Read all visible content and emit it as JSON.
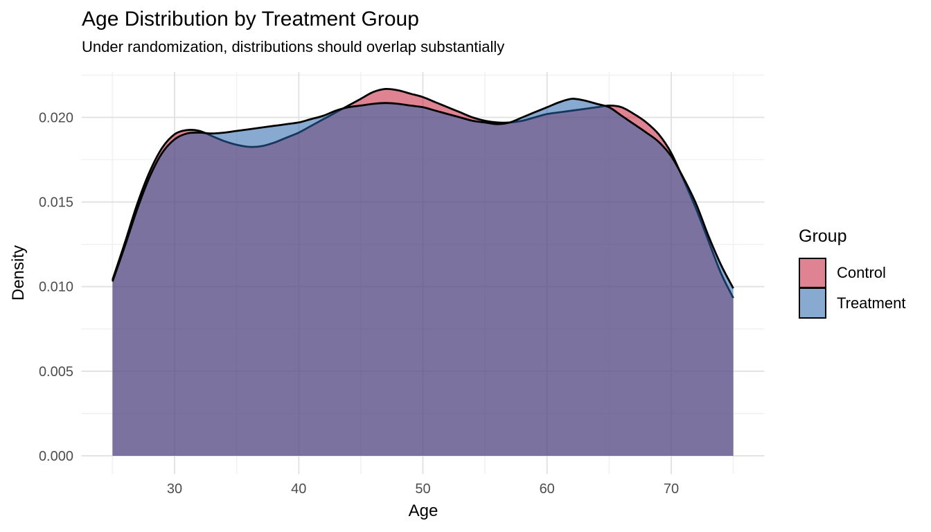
{
  "chart_data": {
    "type": "area",
    "title": "Age Distribution by Treatment Group",
    "subtitle": "Under randomization, distributions should overlap substantially",
    "xlabel": "Age",
    "ylabel": "Density",
    "legend_title": "Group",
    "legend_position": "right",
    "grid": true,
    "xlim": [
      22.5,
      77.5
    ],
    "ylim": [
      -0.00108,
      0.02268
    ],
    "x": [
      25,
      26,
      27,
      28,
      29,
      30,
      31,
      32,
      33,
      34,
      35,
      36,
      37,
      38,
      39,
      40,
      41,
      42,
      43,
      44,
      45,
      46,
      47,
      48,
      49,
      50,
      51,
      52,
      53,
      54,
      55,
      56,
      57,
      58,
      59,
      60,
      61,
      62,
      63,
      64,
      65,
      66,
      67,
      68,
      69,
      70,
      71,
      72,
      73,
      74,
      75
    ],
    "series": [
      {
        "name": "Control",
        "fill": "rgba(196,30,58,0.55)",
        "stroke": "#000000",
        "values": [
          0.0104,
          0.0126,
          0.0149,
          0.0168,
          0.0182,
          0.019,
          0.01925,
          0.0192,
          0.0189,
          0.0186,
          0.01838,
          0.01826,
          0.0183,
          0.0185,
          0.0188,
          0.0191,
          0.0195,
          0.0199,
          0.0203,
          0.0207,
          0.0211,
          0.0215,
          0.02168,
          0.0216,
          0.0214,
          0.0212,
          0.0209,
          0.0206,
          0.0203,
          0.02,
          0.0198,
          0.0197,
          0.0197,
          0.0198,
          0.02,
          0.0202,
          0.0203,
          0.0204,
          0.0205,
          0.0206,
          0.0207,
          0.0206,
          0.0202,
          0.0197,
          0.019,
          0.0179,
          0.0163,
          0.0146,
          0.0127,
          0.0108,
          0.00933
        ]
      },
      {
        "name": "Treatment",
        "fill": "rgba(40,100,170,0.55)",
        "stroke": "#000000",
        "values": [
          0.0103,
          0.0124,
          0.0146,
          0.0165,
          0.0179,
          0.0187,
          0.01905,
          0.0191,
          0.01905,
          0.0191,
          0.0192,
          0.0193,
          0.0194,
          0.0195,
          0.0196,
          0.0197,
          0.0199,
          0.0201,
          0.0204,
          0.0206,
          0.0207,
          0.0208,
          0.02085,
          0.0208,
          0.0207,
          0.0206,
          0.0204,
          0.0202,
          0.02,
          0.0198,
          0.0197,
          0.0196,
          0.0197,
          0.02,
          0.0203,
          0.0206,
          0.0209,
          0.0211,
          0.021,
          0.0208,
          0.0206,
          0.0201,
          0.0196,
          0.0191,
          0.01855,
          0.0177,
          0.0164,
          0.0149,
          0.013,
          0.0113,
          0.0099
        ]
      }
    ],
    "x_ticks": {
      "values": [
        30,
        40,
        50,
        60,
        70
      ],
      "labels": [
        "30",
        "40",
        "50",
        "60",
        "70"
      ]
    },
    "y_ticks": {
      "values": [
        0,
        0.005,
        0.01,
        0.015,
        0.02
      ],
      "labels": [
        "0.000",
        "0.005",
        "0.010",
        "0.015",
        "0.020"
      ]
    },
    "x_minor": [
      25,
      35,
      45,
      55,
      65,
      75
    ],
    "y_minor": [
      0.0025,
      0.0075,
      0.0125,
      0.0175,
      0.0225
    ],
    "colors": {
      "grid_major": "#E3E3E3",
      "grid_minor": "#F1F1F1",
      "tick_text": "#4D4D4D",
      "text": "#000000",
      "background": "#FFFFFF",
      "curve_stroke": "#000000",
      "overlap_fill": "#7E729B"
    }
  }
}
